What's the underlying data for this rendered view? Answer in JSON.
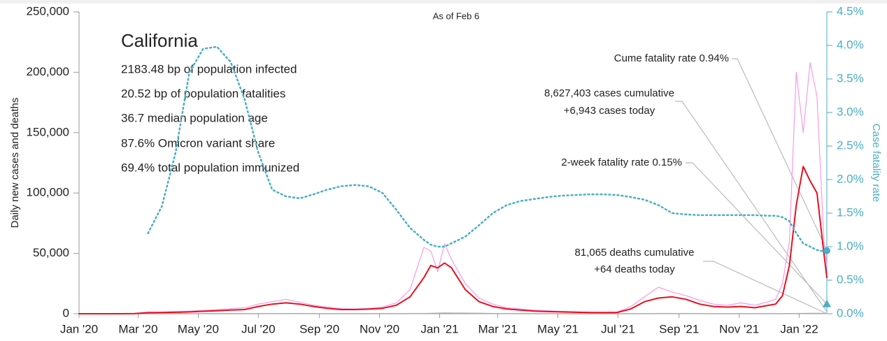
{
  "chart_data": {
    "type": "line",
    "subtitle": "As of Feb 6",
    "ylabel": "Daily new cases and deaths",
    "y2label": "Case fatality rate",
    "annotations": {
      "state": "California",
      "info": [
        "2183.48 bp of population infected",
        "20.52 bp of population fatalities",
        "36.7 median population age",
        "87.6% Omicron variant share",
        "69.4% total population immunized"
      ],
      "cume_fatality": "Cume fatality rate 0.94%",
      "cases_cumulative": "8,627,403 cases cumulative",
      "cases_today": "+6,943 cases today",
      "two_week_fatality": "2-week fatality rate 0.15%",
      "deaths_cumulative": "81,065 deaths cumulative",
      "deaths_today": "+64 deaths today"
    },
    "markers": [
      {
        "color": "#4aaec4",
        "shape": "circle",
        "value": 0.94
      },
      {
        "color": "#4aaec4",
        "shape": "triangle",
        "value": 0.15
      }
    ],
    "x": [
      0,
      14,
      28,
      42,
      56,
      70,
      84,
      98,
      112,
      126,
      140,
      154,
      168,
      182,
      196,
      210,
      224,
      238,
      252,
      266,
      280,
      294,
      308,
      322,
      336,
      350,
      357,
      364,
      371,
      378,
      392,
      406,
      420,
      434,
      448,
      462,
      476,
      490,
      504,
      518,
      532,
      546,
      560,
      574,
      588,
      602,
      616,
      630,
      644,
      658,
      672,
      686,
      700,
      707,
      714,
      721,
      728,
      735,
      742,
      749,
      756,
      759
    ],
    "series": [
      {
        "color": "#f59ae8",
        "width": 1.2,
        "dash": false,
        "values": [
          0,
          0,
          0,
          0,
          200,
          1500,
          1400,
          1800,
          2200,
          2800,
          3500,
          4200,
          5000,
          8000,
          10000,
          12000,
          9500,
          7000,
          5500,
          4200,
          4000,
          4500,
          5500,
          9000,
          20000,
          55000,
          52000,
          35000,
          58000,
          45000,
          25000,
          13000,
          8000,
          5000,
          4000,
          3000,
          2500,
          2000,
          1600,
          1300,
          1200,
          1400,
          6000,
          14000,
          22000,
          18000,
          15000,
          11000,
          8000,
          7000,
          9000,
          7000,
          10000,
          12000,
          25000,
          60000,
          200000,
          150000,
          208000,
          180000,
          60000,
          40000
        ]
      },
      {
        "color": "#aaaaaa",
        "width": 1.5,
        "dash": false,
        "values": [
          0,
          0,
          0,
          0,
          0,
          50,
          80,
          80,
          80,
          80,
          70,
          70,
          70,
          100,
          130,
          130,
          110,
          90,
          70,
          50,
          40,
          40,
          40,
          50,
          100,
          200,
          300,
          450,
          550,
          500,
          450,
          350,
          200,
          120,
          80,
          60,
          40,
          30,
          25,
          20,
          20,
          20,
          30,
          60,
          100,
          130,
          120,
          100,
          80,
          60,
          50,
          50,
          50,
          60,
          80,
          120,
          200,
          250,
          300,
          300,
          250,
          200
        ]
      },
      {
        "color": "#e8101e",
        "width": 2,
        "dash": false,
        "values": [
          0,
          0,
          0,
          0,
          100,
          800,
          1000,
          1200,
          1500,
          2000,
          2500,
          3000,
          3500,
          6000,
          8000,
          9000,
          8000,
          6000,
          4500,
          3500,
          3500,
          3800,
          4500,
          7000,
          14000,
          30000,
          40000,
          38000,
          42000,
          38000,
          20000,
          10000,
          6000,
          4000,
          3000,
          2200,
          1800,
          1500,
          1200,
          1000,
          900,
          1000,
          4000,
          10000,
          13000,
          14000,
          12000,
          8000,
          6000,
          5500,
          6000,
          5000,
          7000,
          8000,
          15000,
          40000,
          90000,
          122000,
          110000,
          100000,
          50000,
          30000
        ]
      },
      {
        "color": "#4aaec4",
        "width": 2.5,
        "dash": true,
        "axis": "y2",
        "values": [
          null,
          null,
          null,
          null,
          null,
          1.2,
          1.6,
          2.4,
          3.6,
          3.95,
          3.98,
          3.75,
          3.2,
          2.4,
          1.85,
          1.75,
          1.72,
          1.78,
          1.85,
          1.9,
          1.92,
          1.9,
          1.8,
          1.55,
          1.28,
          1.1,
          1.03,
          1.0,
          1.0,
          1.05,
          1.15,
          1.32,
          1.5,
          1.62,
          1.68,
          1.71,
          1.74,
          1.76,
          1.77,
          1.78,
          1.78,
          1.77,
          1.74,
          1.7,
          1.62,
          1.5,
          1.48,
          1.47,
          1.47,
          1.47,
          1.47,
          1.47,
          1.46,
          1.46,
          1.44,
          1.38,
          1.2,
          1.05,
          1.0,
          0.95,
          0.93,
          0.94
        ]
      }
    ],
    "xlim": [
      0,
      759
    ],
    "xticks": [
      {
        "value": 0,
        "label": "Jan '20"
      },
      {
        "value": 60,
        "label": "Mar '20"
      },
      {
        "value": 121,
        "label": "May '20"
      },
      {
        "value": 182,
        "label": "Jul '20"
      },
      {
        "value": 244,
        "label": "Sep '20"
      },
      {
        "value": 305,
        "label": "Nov '20"
      },
      {
        "value": 366,
        "label": "Jan '21"
      },
      {
        "value": 425,
        "label": "Mar '21"
      },
      {
        "value": 486,
        "label": "May '21"
      },
      {
        "value": 547,
        "label": "Jul '21"
      },
      {
        "value": 609,
        "label": "Sep '21"
      },
      {
        "value": 670,
        "label": "Nov '21"
      },
      {
        "value": 731,
        "label": "Jan '22"
      }
    ],
    "ylim": [
      0,
      250000
    ],
    "yticks": [
      0,
      {
        "value": 50000,
        "label": "50,000"
      },
      {
        "value": 100000,
        "label": "100,000"
      },
      {
        "value": 150000,
        "label": "150,000"
      },
      {
        "value": 200000,
        "label": "200,000"
      },
      {
        "value": 250000,
        "label": "250,000"
      }
    ],
    "y2lim": [
      0,
      4.5
    ],
    "y2ticks": [
      {
        "value": 0,
        "label": "0.0%"
      },
      {
        "value": 0.5,
        "label": "0.5%"
      },
      {
        "value": 1,
        "label": "1.0%"
      },
      {
        "value": 1.5,
        "label": "1.5%"
      },
      {
        "value": 2,
        "label": "2.0%"
      },
      {
        "value": 2.5,
        "label": "2.5%"
      },
      {
        "value": 3,
        "label": "3.0%"
      },
      {
        "value": 3.5,
        "label": "3.5%"
      },
      {
        "value": 4,
        "label": "4.0%"
      },
      {
        "value": 4.5,
        "label": "4.5%"
      }
    ]
  }
}
